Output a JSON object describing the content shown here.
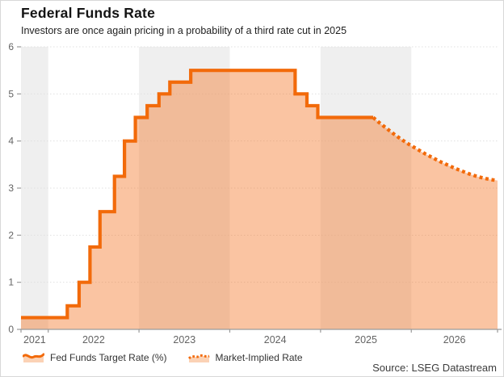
{
  "colors": {
    "line": "#f26a0a",
    "fill": "rgba(243,115,33,0.42)",
    "band": "#efefef",
    "grid": "#e0e0e0",
    "axis": "#9a9a9a",
    "tick_label": "#636363",
    "title": "#141414",
    "subtitle": "#1e1e1e",
    "source": "#3c3c3c"
  },
  "legend": {
    "items": [
      {
        "label": "Fed Funds Target Rate (%)",
        "icon": "area-wave-solid-icon",
        "style": "solid"
      },
      {
        "label": "Market-Implied Rate",
        "icon": "area-wave-dotted-icon",
        "style": "dotted"
      }
    ]
  },
  "chart_data": {
    "type": "area",
    "title": "Federal Funds Rate",
    "subtitle": "Investors are once again pricing in a probability of a third rate cut in 2025",
    "source": "Source: LSEG Datastream",
    "xlabel": "",
    "ylabel": "",
    "x_domain": [
      2021.7,
      2026.95
    ],
    "ylim": [
      0,
      6
    ],
    "y_ticks": [
      0,
      1,
      2,
      3,
      4,
      5,
      6
    ],
    "x_year_boundaries": [
      2022,
      2023,
      2024,
      2025,
      2026
    ],
    "x_year_labels": [
      2021,
      2022,
      2023,
      2024,
      2025,
      2026
    ],
    "shaded_years": [
      2021,
      2023,
      2025
    ],
    "grid": "horizontal-dotted",
    "legend_position": "bottom-left",
    "series": [
      {
        "name": "Fed Funds Target Rate (%)",
        "type": "step-line-solid",
        "steps": [
          [
            2021.7,
            0.25
          ],
          [
            2022.21,
            0.5
          ],
          [
            2022.34,
            1.0
          ],
          [
            2022.46,
            1.75
          ],
          [
            2022.57,
            2.5
          ],
          [
            2022.73,
            3.25
          ],
          [
            2022.84,
            4.0
          ],
          [
            2022.96,
            4.5
          ],
          [
            2023.09,
            4.75
          ],
          [
            2023.22,
            5.0
          ],
          [
            2023.34,
            5.25
          ],
          [
            2023.57,
            5.5
          ],
          [
            2024.72,
            5.0
          ],
          [
            2024.85,
            4.75
          ],
          [
            2024.97,
            4.5
          ]
        ],
        "end_x": 2025.58
      },
      {
        "name": "Market-Implied Rate",
        "type": "dotted-line",
        "points": [
          [
            2025.58,
            4.5
          ],
          [
            2025.64,
            4.4
          ],
          [
            2025.7,
            4.31
          ],
          [
            2025.76,
            4.22
          ],
          [
            2025.82,
            4.13
          ],
          [
            2025.88,
            4.05
          ],
          [
            2025.94,
            3.97
          ],
          [
            2026.0,
            3.9
          ],
          [
            2026.08,
            3.81
          ],
          [
            2026.16,
            3.72
          ],
          [
            2026.24,
            3.64
          ],
          [
            2026.32,
            3.56
          ],
          [
            2026.4,
            3.49
          ],
          [
            2026.48,
            3.42
          ],
          [
            2026.56,
            3.36
          ],
          [
            2026.64,
            3.3
          ],
          [
            2026.72,
            3.25
          ],
          [
            2026.8,
            3.21
          ],
          [
            2026.88,
            3.18
          ],
          [
            2026.95,
            3.16
          ]
        ]
      }
    ]
  }
}
